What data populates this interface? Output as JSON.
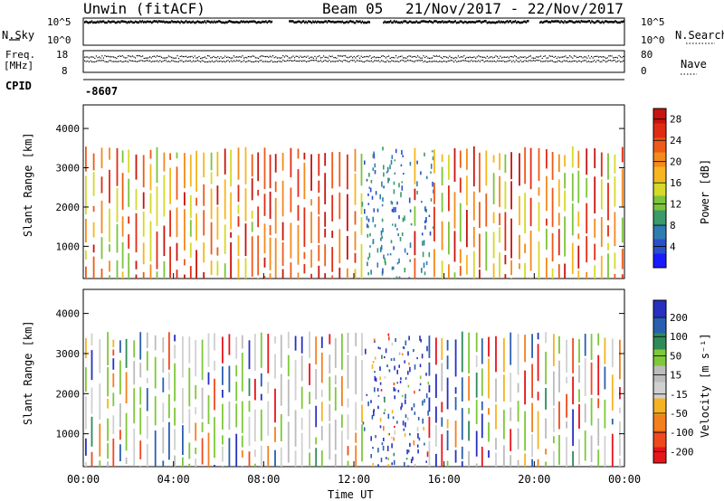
{
  "header": {
    "title": "Unwin (fitACF)",
    "beam": "Beam 05",
    "date_range": "21/Nov/2017 - 22/Nov/2017"
  },
  "meta_panels": {
    "nsky_label": "N.Sky",
    "nsky_ticks": [
      "10^5",
      "10^0"
    ],
    "nsearch_label": "N.Search",
    "nsearch_ticks": [
      "10^5",
      "10^0"
    ],
    "freq_label_1": "Freq.",
    "freq_label_2": "[MHz]",
    "freq_ticks": [
      "18",
      "8"
    ],
    "nave_label": "Nave",
    "nave_ticks": [
      "80",
      "0"
    ],
    "cpid_label": "CPID",
    "cpid_value": "-8607"
  },
  "colors": {
    "power_scale": [
      "#1a1aff",
      "#2850c8",
      "#2e7db0",
      "#3a9a6a",
      "#7cc43a",
      "#d6d82a",
      "#f7b51e",
      "#f38a1c",
      "#ee5a18",
      "#e02c14",
      "#c81410"
    ],
    "velocity_scale": [
      "#e8141a",
      "#ef4a1d",
      "#f3801e",
      "#f6b223",
      "#d0d0d0",
      "#bcbcbc",
      "#7ec83a",
      "#2e8b57",
      "#2a5fb0",
      "#2830c0"
    ]
  },
  "chart_data": [
    {
      "type": "heatmap",
      "title": "",
      "ylabel": "Slant Range [km]",
      "xlabel": "",
      "x_ticks": [
        "00:00",
        "04:00",
        "08:00",
        "12:00",
        "16:00",
        "20:00",
        "00:00"
      ],
      "y_ticks": [
        "1000",
        "2000",
        "3000",
        "4000"
      ],
      "ylim": [
        180,
        4600
      ],
      "colorbar": {
        "label": "Power [dB]",
        "ticks": [
          "4",
          "8",
          "12",
          "16",
          "20",
          "24",
          "28"
        ],
        "range": [
          0,
          30
        ]
      },
      "data_extent_km": [
        180,
        3550
      ],
      "time_span_hours": [
        0,
        24
      ]
    },
    {
      "type": "heatmap",
      "title": "",
      "ylabel": "Slant Range [km]",
      "xlabel": "Time UT",
      "x_ticks": [
        "00:00",
        "04:00",
        "08:00",
        "12:00",
        "16:00",
        "20:00",
        "00:00"
      ],
      "y_ticks": [
        "1000",
        "2000",
        "3000",
        "4000"
      ],
      "ylim": [
        180,
        4600
      ],
      "colorbar": {
        "label": "Velocity [m s⁻¹]",
        "ticks": [
          "200",
          "100",
          "50",
          "15",
          "-15",
          "-50",
          "-100",
          "-200"
        ],
        "range": [
          -250,
          250
        ]
      },
      "data_extent_km": [
        180,
        3550
      ],
      "time_span_hours": [
        0,
        24
      ]
    }
  ]
}
